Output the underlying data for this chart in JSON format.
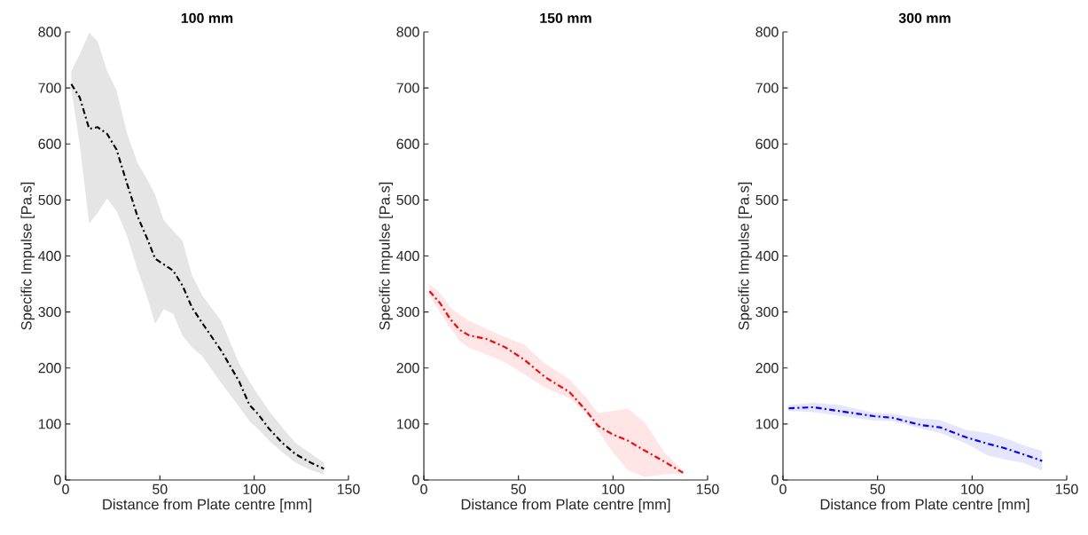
{
  "chart_data": [
    {
      "type": "line",
      "title": "100 mm",
      "xlabel": "Distance from Plate centre [mm]",
      "ylabel": "Specific Impulse [Pa.s]",
      "xlim": [
        0,
        150
      ],
      "ylim": [
        0,
        800
      ],
      "xticks": [
        0,
        50,
        100,
        150
      ],
      "yticks": [
        0,
        100,
        200,
        300,
        400,
        500,
        600,
        700,
        800
      ],
      "line_style": "dashed",
      "x": [
        3,
        7.5,
        12.5,
        17,
        22,
        27,
        32.5,
        38,
        43.5,
        47.5,
        52,
        57,
        62,
        67,
        72.5,
        82.5,
        92,
        97.5,
        102,
        108,
        115,
        122,
        130,
        137
      ],
      "series": [
        {
          "color": "#000000",
          "values": [
            707,
            683,
            627,
            630,
            618,
            590,
            530,
            472,
            429,
            395,
            385,
            374,
            347,
            308,
            280,
            231,
            176,
            134,
            118,
            91,
            66,
            46,
            31,
            20
          ],
          "lower": [
            700,
            598,
            458,
            477,
            503,
            480,
            437,
            377,
            324,
            279,
            305,
            297,
            258,
            237,
            221,
            173,
            131,
            105,
            91,
            70,
            49,
            31,
            18,
            10
          ],
          "upper": [
            730,
            760,
            799,
            783,
            730,
            696,
            620,
            567,
            535,
            509,
            464,
            445,
            427,
            366,
            329,
            284,
            208,
            176,
            152,
            123,
            93,
            66,
            47,
            31
          ]
        }
      ]
    },
    {
      "type": "line",
      "title": "150 mm",
      "xlabel": "Distance from Plate centre [mm]",
      "ylabel": "Specific Impulse [Pa.s]",
      "xlim": [
        0,
        150
      ],
      "ylim": [
        0,
        800
      ],
      "xticks": [
        0,
        50,
        100,
        150
      ],
      "yticks": [
        0,
        100,
        200,
        300,
        400,
        500,
        600,
        700,
        800
      ],
      "line_style": "dashed",
      "x": [
        3,
        8.5,
        14,
        19,
        24,
        33,
        43,
        53,
        64,
        77,
        86,
        92,
        100,
        108,
        117,
        127,
        137
      ],
      "series": [
        {
          "color": "#ff0000",
          "values": [
            337,
            316,
            287,
            268,
            258,
            252,
            237,
            215,
            184,
            157,
            123,
            97,
            81,
            70,
            52,
            33,
            13
          ],
          "lower": [
            329,
            300,
            271,
            248,
            236,
            224,
            210,
            189,
            165,
            146,
            118,
            88,
            49,
            17,
            5,
            10,
            12
          ],
          "upper": [
            350,
            334,
            308,
            295,
            284,
            270,
            255,
            242,
            208,
            180,
            146,
            120,
            123,
            128,
            102,
            50,
            17
          ]
        }
      ]
    },
    {
      "type": "line",
      "title": "300 mm",
      "xlabel": "Distance from Plate centre [mm]",
      "ylabel": "Specific Impulse [Pa.s]",
      "xlim": [
        0,
        150
      ],
      "ylim": [
        0,
        800
      ],
      "xticks": [
        0,
        50,
        100,
        150
      ],
      "yticks": [
        0,
        100,
        200,
        300,
        400,
        500,
        600,
        700,
        800
      ],
      "line_style": "dashed",
      "x": [
        3,
        16,
        30,
        48,
        58,
        73,
        83,
        97,
        108,
        117,
        127,
        137
      ],
      "series": [
        {
          "color": "#0000ff",
          "values": [
            128,
            130,
            123,
            114,
            111,
            98,
            94,
            76,
            65,
            57,
            46,
            34
          ],
          "lower": [
            123,
            121,
            115,
            106,
            105,
            92,
            84,
            65,
            44,
            37,
            31,
            17
          ],
          "upper": [
            134,
            138,
            134,
            120,
            118,
            110,
            107,
            89,
            84,
            75,
            62,
            52
          ]
        }
      ]
    }
  ]
}
